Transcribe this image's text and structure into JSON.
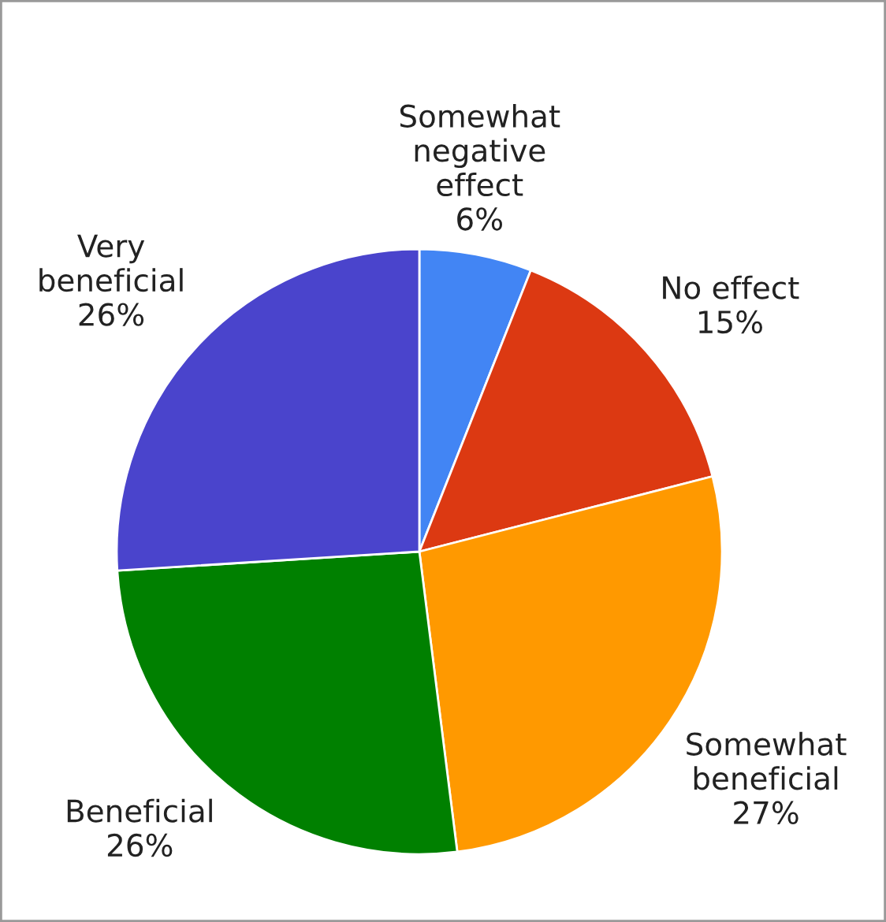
{
  "chart_data": {
    "type": "pie",
    "categories": [
      "Somewhat\nnegative\neffect",
      "No effect",
      "Somewhat\nbeneficial",
      "Beneficial",
      "Very\nbeneficial"
    ],
    "values": [
      6,
      15,
      27,
      26,
      26
    ],
    "value_labels": [
      "6%",
      "15%",
      "27%",
      "26%",
      "26%"
    ],
    "colors": [
      "#4285f4",
      "#dc3912",
      "#ff9900",
      "#008000",
      "#4a44cc"
    ]
  }
}
